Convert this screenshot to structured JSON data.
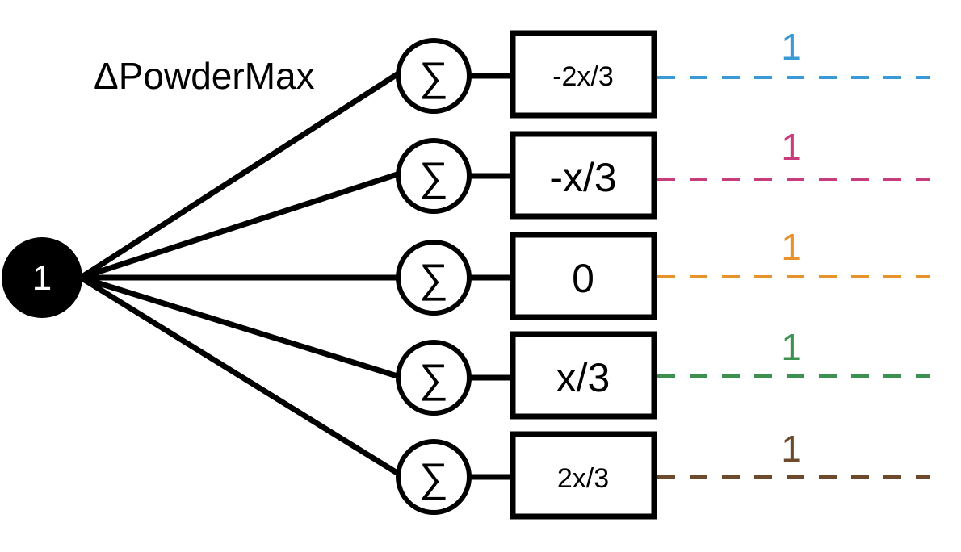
{
  "input_node": {
    "label": "1",
    "color": "#000000"
  },
  "edge_label": "ΔPowderMax",
  "sum_symbol": "∑",
  "rows": [
    {
      "box": "-2x/3",
      "weight": "1",
      "color": "#3a9ad6"
    },
    {
      "box": "-x/3",
      "weight": "1",
      "color": "#c83c7b"
    },
    {
      "box": "0",
      "weight": "1",
      "color": "#e8922a"
    },
    {
      "box": "x/3",
      "weight": "1",
      "color": "#3c9150"
    },
    {
      "box": "2x/3",
      "weight": "1",
      "color": "#6e4a2c"
    }
  ]
}
